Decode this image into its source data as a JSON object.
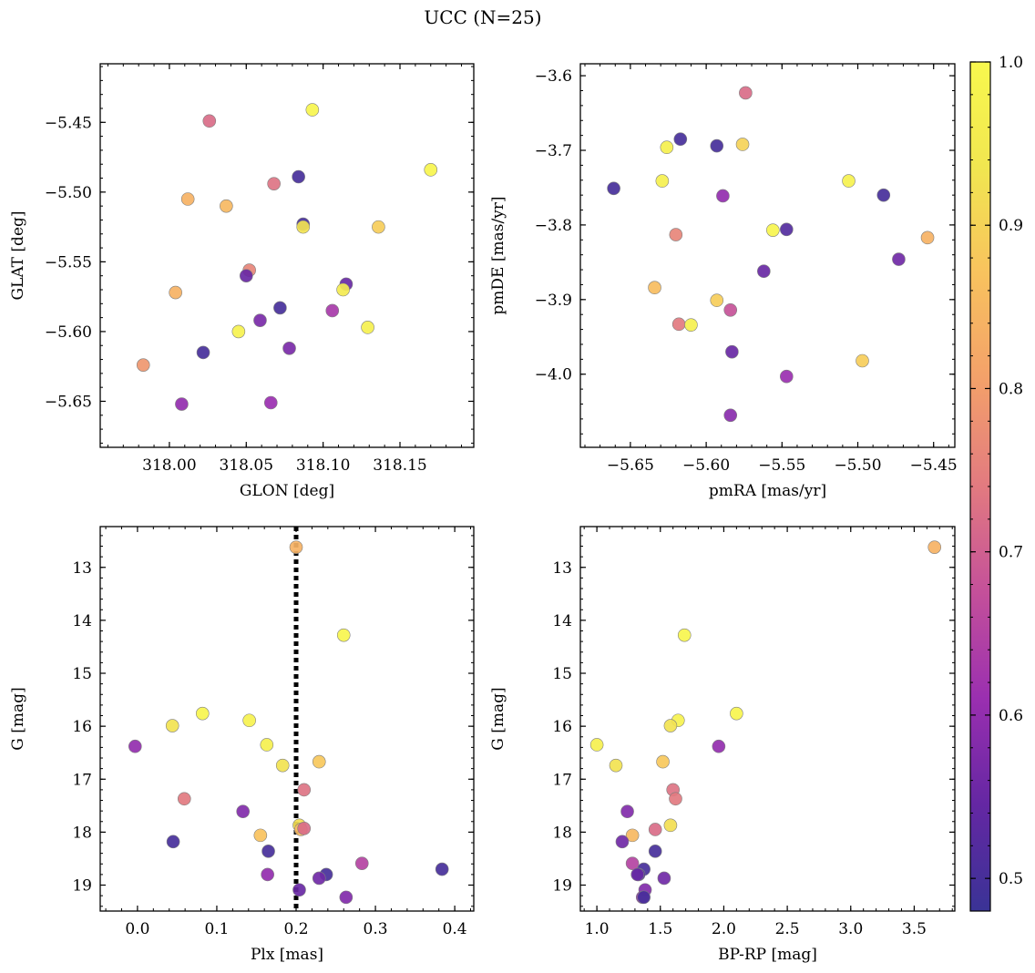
{
  "figure": {
    "suptitle": "UCC (N=25)"
  },
  "colorbar": {
    "range": [
      0.48,
      1.0
    ],
    "ticks": [
      0.5,
      0.6,
      0.7,
      0.8,
      0.9,
      1.0
    ],
    "tick_labels": [
      "0.5",
      "0.6",
      "0.7",
      "0.8",
      "0.9",
      "1.0"
    ],
    "colormap": "plasma",
    "colors": [
      "#3a3396",
      "#6427a3",
      "#9a2fb0",
      "#c4509a",
      "#e27a80",
      "#f3a06a",
      "#f8c25e",
      "#f1e650",
      "#f8f84e"
    ]
  },
  "chart_data": [
    {
      "type": "scatter",
      "id": "glon-glat",
      "xlabel": "GLON [deg]",
      "ylabel": "GLAT [deg]",
      "xlim": [
        317.955,
        318.198
      ],
      "ylim": [
        -5.683,
        -5.408
      ],
      "y_inverted": false,
      "xticks": [
        318.0,
        318.05,
        318.1,
        318.15
      ],
      "xtick_labels": [
        "318.00",
        "318.05",
        "318.10",
        "318.15"
      ],
      "yticks": [
        -5.45,
        -5.5,
        -5.55,
        -5.6,
        -5.65
      ],
      "ytick_labels": [
        "−5.45",
        "−5.50",
        "−5.55",
        "−5.60",
        "−5.65"
      ],
      "x": [
        318.093,
        318.026,
        318.17,
        318.084,
        318.068,
        318.012,
        318.037,
        318.087,
        318.087,
        318.136,
        318.052,
        318.05,
        318.115,
        318.113,
        318.004,
        318.072,
        318.106,
        318.059,
        318.129,
        318.045,
        318.078,
        318.022,
        317.983,
        318.066,
        318.008
      ],
      "y": [
        -5.441,
        -5.449,
        -5.484,
        -5.489,
        -5.494,
        -5.505,
        -5.51,
        -5.523,
        -5.525,
        -5.525,
        -5.556,
        -5.56,
        -5.566,
        -5.57,
        -5.572,
        -5.583,
        -5.585,
        -5.592,
        -5.597,
        -5.6,
        -5.612,
        -5.615,
        -5.624,
        -5.651,
        -5.652
      ],
      "c": [
        0.99,
        0.72,
        0.99,
        0.5,
        0.73,
        0.84,
        0.85,
        0.5,
        0.93,
        0.89,
        0.76,
        0.55,
        0.55,
        0.95,
        0.84,
        0.5,
        0.63,
        0.57,
        0.97,
        0.98,
        0.57,
        0.5,
        0.79,
        0.61,
        0.6
      ]
    },
    {
      "type": "scatter",
      "id": "pmra-pmde",
      "xlabel": "pmRA [mas/yr]",
      "ylabel": "pmDE [mas/yr]",
      "xlim": [
        -5.683,
        -5.436
      ],
      "ylim": [
        -4.098,
        -3.584
      ],
      "y_inverted": false,
      "xticks": [
        -5.65,
        -5.6,
        -5.55,
        -5.5,
        -5.45
      ],
      "xtick_labels": [
        "−5.65",
        "−5.60",
        "−5.55",
        "−5.50",
        "−5.45"
      ],
      "yticks": [
        -3.6,
        -3.7,
        -3.8,
        -3.9,
        -4.0
      ],
      "ytick_labels": [
        "−3.6",
        "−3.7",
        "−3.8",
        "−3.9",
        "−4.0"
      ],
      "x": [
        -5.574,
        -5.617,
        -5.626,
        -5.593,
        -5.576,
        -5.661,
        -5.629,
        -5.506,
        -5.483,
        -5.589,
        -5.556,
        -5.547,
        -5.62,
        -5.454,
        -5.473,
        -5.562,
        -5.634,
        -5.593,
        -5.618,
        -5.61,
        -5.584,
        -5.497,
        -5.583,
        -5.547,
        -5.584
      ],
      "y": [
        -3.623,
        -3.685,
        -3.696,
        -3.694,
        -3.692,
        -3.751,
        -3.741,
        -3.741,
        -3.76,
        -3.761,
        -3.807,
        -3.806,
        -3.813,
        -3.817,
        -3.846,
        -3.862,
        -3.884,
        -3.901,
        -3.933,
        -3.934,
        -3.914,
        -3.982,
        -3.97,
        -4.003,
        -4.055
      ],
      "c": [
        0.72,
        0.5,
        0.97,
        0.5,
        0.9,
        0.5,
        0.97,
        0.98,
        0.5,
        0.6,
        0.99,
        0.52,
        0.76,
        0.84,
        0.56,
        0.55,
        0.86,
        0.89,
        0.74,
        0.97,
        0.68,
        0.89,
        0.55,
        0.61,
        0.59
      ]
    },
    {
      "type": "scatter",
      "id": "plx-g",
      "xlabel": "Plx [mas]",
      "ylabel": "G [mag]",
      "xlim": [
        -0.047,
        0.424
      ],
      "ylim": [
        19.49,
        12.23
      ],
      "y_inverted": true,
      "vline": {
        "x": 0.2,
        "style": "dotted",
        "color": "#000000"
      },
      "xticks": [
        0.0,
        0.1,
        0.2,
        0.3,
        0.4
      ],
      "xtick_labels": [
        "0.0",
        "0.1",
        "0.2",
        "0.3",
        "0.4"
      ],
      "yticks": [
        13,
        14,
        15,
        16,
        17,
        18,
        19
      ],
      "ytick_labels": [
        "13",
        "14",
        "15",
        "16",
        "17",
        "18",
        "19"
      ],
      "x": [
        0.2,
        0.26,
        0.082,
        0.141,
        0.044,
        0.163,
        0.183,
        0.229,
        0.21,
        -0.003,
        0.059,
        0.133,
        0.204,
        0.206,
        0.21,
        0.155,
        0.045,
        0.165,
        0.164,
        0.283,
        0.384,
        0.238,
        0.229,
        0.204,
        0.263
      ],
      "y": [
        12.62,
        14.28,
        15.76,
        15.89,
        15.99,
        16.35,
        16.74,
        16.67,
        17.2,
        16.38,
        17.37,
        17.61,
        17.87,
        17.95,
        17.93,
        18.06,
        18.18,
        18.36,
        18.8,
        18.59,
        18.7,
        18.8,
        18.87,
        19.09,
        19.23
      ],
      "c": [
        0.84,
        0.99,
        0.99,
        0.98,
        0.93,
        0.97,
        0.93,
        0.88,
        0.73,
        0.6,
        0.74,
        0.58,
        0.92,
        0.85,
        0.72,
        0.87,
        0.5,
        0.5,
        0.6,
        0.65,
        0.5,
        0.5,
        0.56,
        0.55,
        0.58
      ]
    },
    {
      "type": "scatter",
      "id": "bprp-g",
      "xlabel": "BP-RP [mag]",
      "ylabel": "G [mag]",
      "xlim": [
        0.87,
        3.82
      ],
      "ylim": [
        19.49,
        12.23
      ],
      "y_inverted": true,
      "xticks": [
        1.0,
        1.5,
        2.0,
        2.5,
        3.0,
        3.5
      ],
      "xtick_labels": [
        "1.0",
        "1.5",
        "2.0",
        "2.5",
        "3.0",
        "3.5"
      ],
      "yticks": [
        13,
        14,
        15,
        16,
        17,
        18,
        19
      ],
      "ytick_labels": [
        "13",
        "14",
        "15",
        "16",
        "17",
        "18",
        "19"
      ],
      "x": [
        3.66,
        1.69,
        2.1,
        1.64,
        1.58,
        1.0,
        1.15,
        1.52,
        1.6,
        1.96,
        1.62,
        1.24,
        1.58,
        1.46,
        1.28,
        1.2,
        1.46,
        1.28,
        1.37,
        1.33,
        1.32,
        1.53,
        1.38,
        1.36,
        1.37
      ],
      "y": [
        12.62,
        14.28,
        15.76,
        15.89,
        15.99,
        16.35,
        16.74,
        16.67,
        17.2,
        16.38,
        17.37,
        17.61,
        17.87,
        17.95,
        18.06,
        18.18,
        18.36,
        18.59,
        18.7,
        18.8,
        18.8,
        18.87,
        19.09,
        19.23,
        19.23
      ],
      "c": [
        0.84,
        0.99,
        0.99,
        0.98,
        0.93,
        0.97,
        0.93,
        0.88,
        0.73,
        0.6,
        0.74,
        0.58,
        0.92,
        0.72,
        0.85,
        0.56,
        0.5,
        0.65,
        0.5,
        0.5,
        0.55,
        0.56,
        0.58,
        0.6,
        0.5
      ]
    }
  ]
}
